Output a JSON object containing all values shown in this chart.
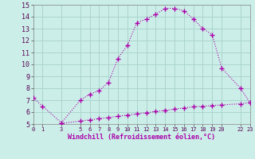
{
  "xlabel": "Windchill (Refroidissement éolien,°C)",
  "background_color": "#cceee8",
  "grid_color": "#aad4ce",
  "line_color": "#aa00aa",
  "upper_curve_x": [
    0,
    1,
    3,
    5,
    6,
    7,
    8,
    9,
    10,
    11,
    12,
    13,
    14,
    15,
    16,
    17,
    18,
    19,
    20,
    22,
    23
  ],
  "upper_curve_y": [
    7.2,
    6.5,
    5.1,
    7.0,
    7.5,
    7.8,
    8.5,
    10.5,
    11.6,
    13.5,
    13.8,
    14.2,
    14.7,
    14.7,
    14.5,
    13.8,
    13.0,
    12.5,
    9.7,
    8.0,
    6.8
  ],
  "lower_curve_x": [
    3,
    5,
    6,
    7,
    8,
    9,
    10,
    11,
    12,
    13,
    14,
    15,
    16,
    17,
    18,
    19,
    20,
    22,
    23
  ],
  "lower_curve_y": [
    5.05,
    5.25,
    5.35,
    5.45,
    5.55,
    5.65,
    5.75,
    5.85,
    5.95,
    6.05,
    6.15,
    6.25,
    6.35,
    6.45,
    6.5,
    6.55,
    6.6,
    6.7,
    6.8
  ],
  "xlim": [
    0,
    23
  ],
  "ylim": [
    5,
    15
  ],
  "yticks": [
    5,
    6,
    7,
    8,
    9,
    10,
    11,
    12,
    13,
    14,
    15
  ],
  "xticks": [
    0,
    1,
    3,
    5,
    6,
    7,
    8,
    9,
    10,
    11,
    12,
    13,
    14,
    15,
    16,
    17,
    18,
    19,
    20,
    22,
    23
  ],
  "xtick_labels": [
    "0",
    "1",
    "3",
    "5",
    "6",
    "7",
    "8",
    "9",
    "10",
    "11",
    "12",
    "13",
    "14",
    "15",
    "16",
    "17",
    "18",
    "19",
    "20",
    "22",
    "23"
  ],
  "marker": "+",
  "marker_size": 4,
  "linewidth": 0.8
}
